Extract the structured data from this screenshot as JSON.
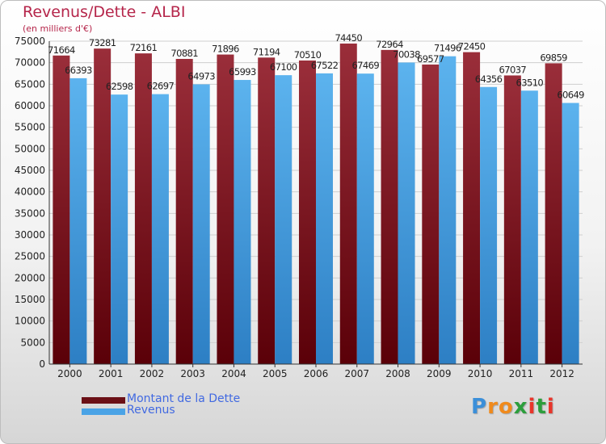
{
  "header": {
    "title": "Revenus/Dette - ALBI",
    "subtitle": "(en milliers d'€)"
  },
  "legend": {
    "items": [
      {
        "label": "Montant de la Dette",
        "color": "#6b1016"
      },
      {
        "label": "Revenus",
        "color": "#4aa3e6"
      }
    ]
  },
  "logo": {
    "letters": [
      "P",
      "r",
      "o",
      "x",
      "i",
      "t",
      "i"
    ],
    "colors": [
      "#3b8fd9",
      "#f08a1c",
      "#f08a1c",
      "#2c9e3c",
      "#e8352b",
      "#2c9e3c",
      "#e8352b"
    ]
  },
  "colors": {
    "debt_top": "#9a2e3a",
    "debt_bottom": "#5a0008",
    "revenue_top": "#5cb3ee",
    "revenue_bottom": "#2d7fc4",
    "grid": "#cfcfcf",
    "axis": "#333333",
    "label": "#222222"
  },
  "chart_data": {
    "type": "bar",
    "title": "Revenus/Dette - ALBI",
    "subtitle": "(en milliers d'€)",
    "categories": [
      "2000",
      "2001",
      "2002",
      "2003",
      "2004",
      "2005",
      "2006",
      "2007",
      "2008",
      "2009",
      "2010",
      "2011",
      "2012"
    ],
    "series": [
      {
        "name": "Montant de la Dette",
        "values": [
          71664,
          73281,
          72161,
          70881,
          71896,
          71194,
          70510,
          74450,
          72964,
          69577,
          72450,
          67037,
          69859
        ]
      },
      {
        "name": "Revenus",
        "values": [
          66393,
          62598,
          62697,
          64973,
          65993,
          67100,
          67522,
          67469,
          70038,
          71496,
          64356,
          63510,
          60649
        ]
      }
    ],
    "data_labels": [
      [
        "71664",
        "73281",
        "72161",
        "70881",
        "71896",
        "71194",
        "70510",
        "74450",
        "72964",
        "69577",
        "72450",
        "67037",
        "69859"
      ],
      [
        "66393",
        "62598",
        "62697",
        "64973",
        "65993",
        "67100",
        "67522",
        "67469",
        "70038",
        "71496",
        "64356",
        "63510",
        "60649"
      ]
    ],
    "ylim": [
      0,
      75000
    ],
    "yticks": [
      "0",
      "5000",
      "10000",
      "15000",
      "20000",
      "25000",
      "30000",
      "35000",
      "40000",
      "45000",
      "50000",
      "55000",
      "60000",
      "65000",
      "70000",
      "75000"
    ],
    "grid": true,
    "legend_position": "bottom-left"
  }
}
